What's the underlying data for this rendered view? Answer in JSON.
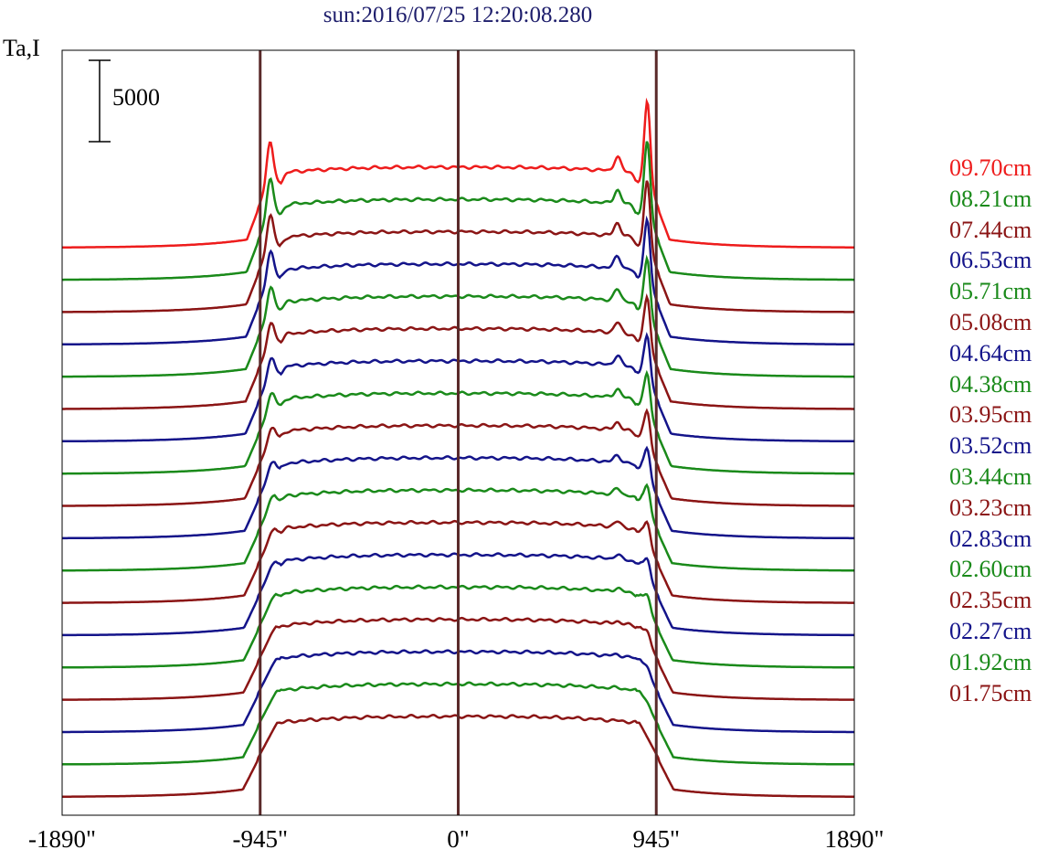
{
  "title": "sun:2016/07/25 12:20:08.280",
  "chart_data": {
    "type": "line",
    "title": "sun:2016/07/25 12:20:08.280",
    "ylabel": "Ta,I",
    "xlabel": "",
    "x_ticks": [
      {
        "value": -1890,
        "label": "-1890\""
      },
      {
        "value": -945,
        "label": "-945\""
      },
      {
        "value": 0,
        "label": "0\""
      },
      {
        "value": 945,
        "label": "945\""
      },
      {
        "value": 1890,
        "label": "1890\""
      }
    ],
    "xlim": [
      -1890,
      1890
    ],
    "vertical_lines": [
      -945,
      0,
      945
    ],
    "scale_bar": {
      "label": "5000",
      "value": 5000
    },
    "grid": false,
    "legend_position": "right",
    "stacked_offset": true,
    "series": [
      {
        "name": "09.70cm",
        "color": "#ee1c1c"
      },
      {
        "name": "08.21cm",
        "color": "#1a8a1a"
      },
      {
        "name": "07.44cm",
        "color": "#8b1515"
      },
      {
        "name": "06.53cm",
        "color": "#14148a"
      },
      {
        "name": "05.71cm",
        "color": "#1a8a1a"
      },
      {
        "name": "05.08cm",
        "color": "#8b1515"
      },
      {
        "name": "04.64cm",
        "color": "#14148a"
      },
      {
        "name": "04.38cm",
        "color": "#1a8a1a"
      },
      {
        "name": "03.95cm",
        "color": "#8b1515"
      },
      {
        "name": "03.52cm",
        "color": "#14148a"
      },
      {
        "name": "03.44cm",
        "color": "#1a8a1a"
      },
      {
        "name": "03.23cm",
        "color": "#8b1515"
      },
      {
        "name": "02.83cm",
        "color": "#14148a"
      },
      {
        "name": "02.60cm",
        "color": "#1a8a1a"
      },
      {
        "name": "02.35cm",
        "color": "#8b1515"
      },
      {
        "name": "02.27cm",
        "color": "#14148a"
      },
      {
        "name": "01.92cm",
        "color": "#1a8a1a"
      },
      {
        "name": "01.75cm",
        "color": "#8b1515"
      }
    ]
  }
}
